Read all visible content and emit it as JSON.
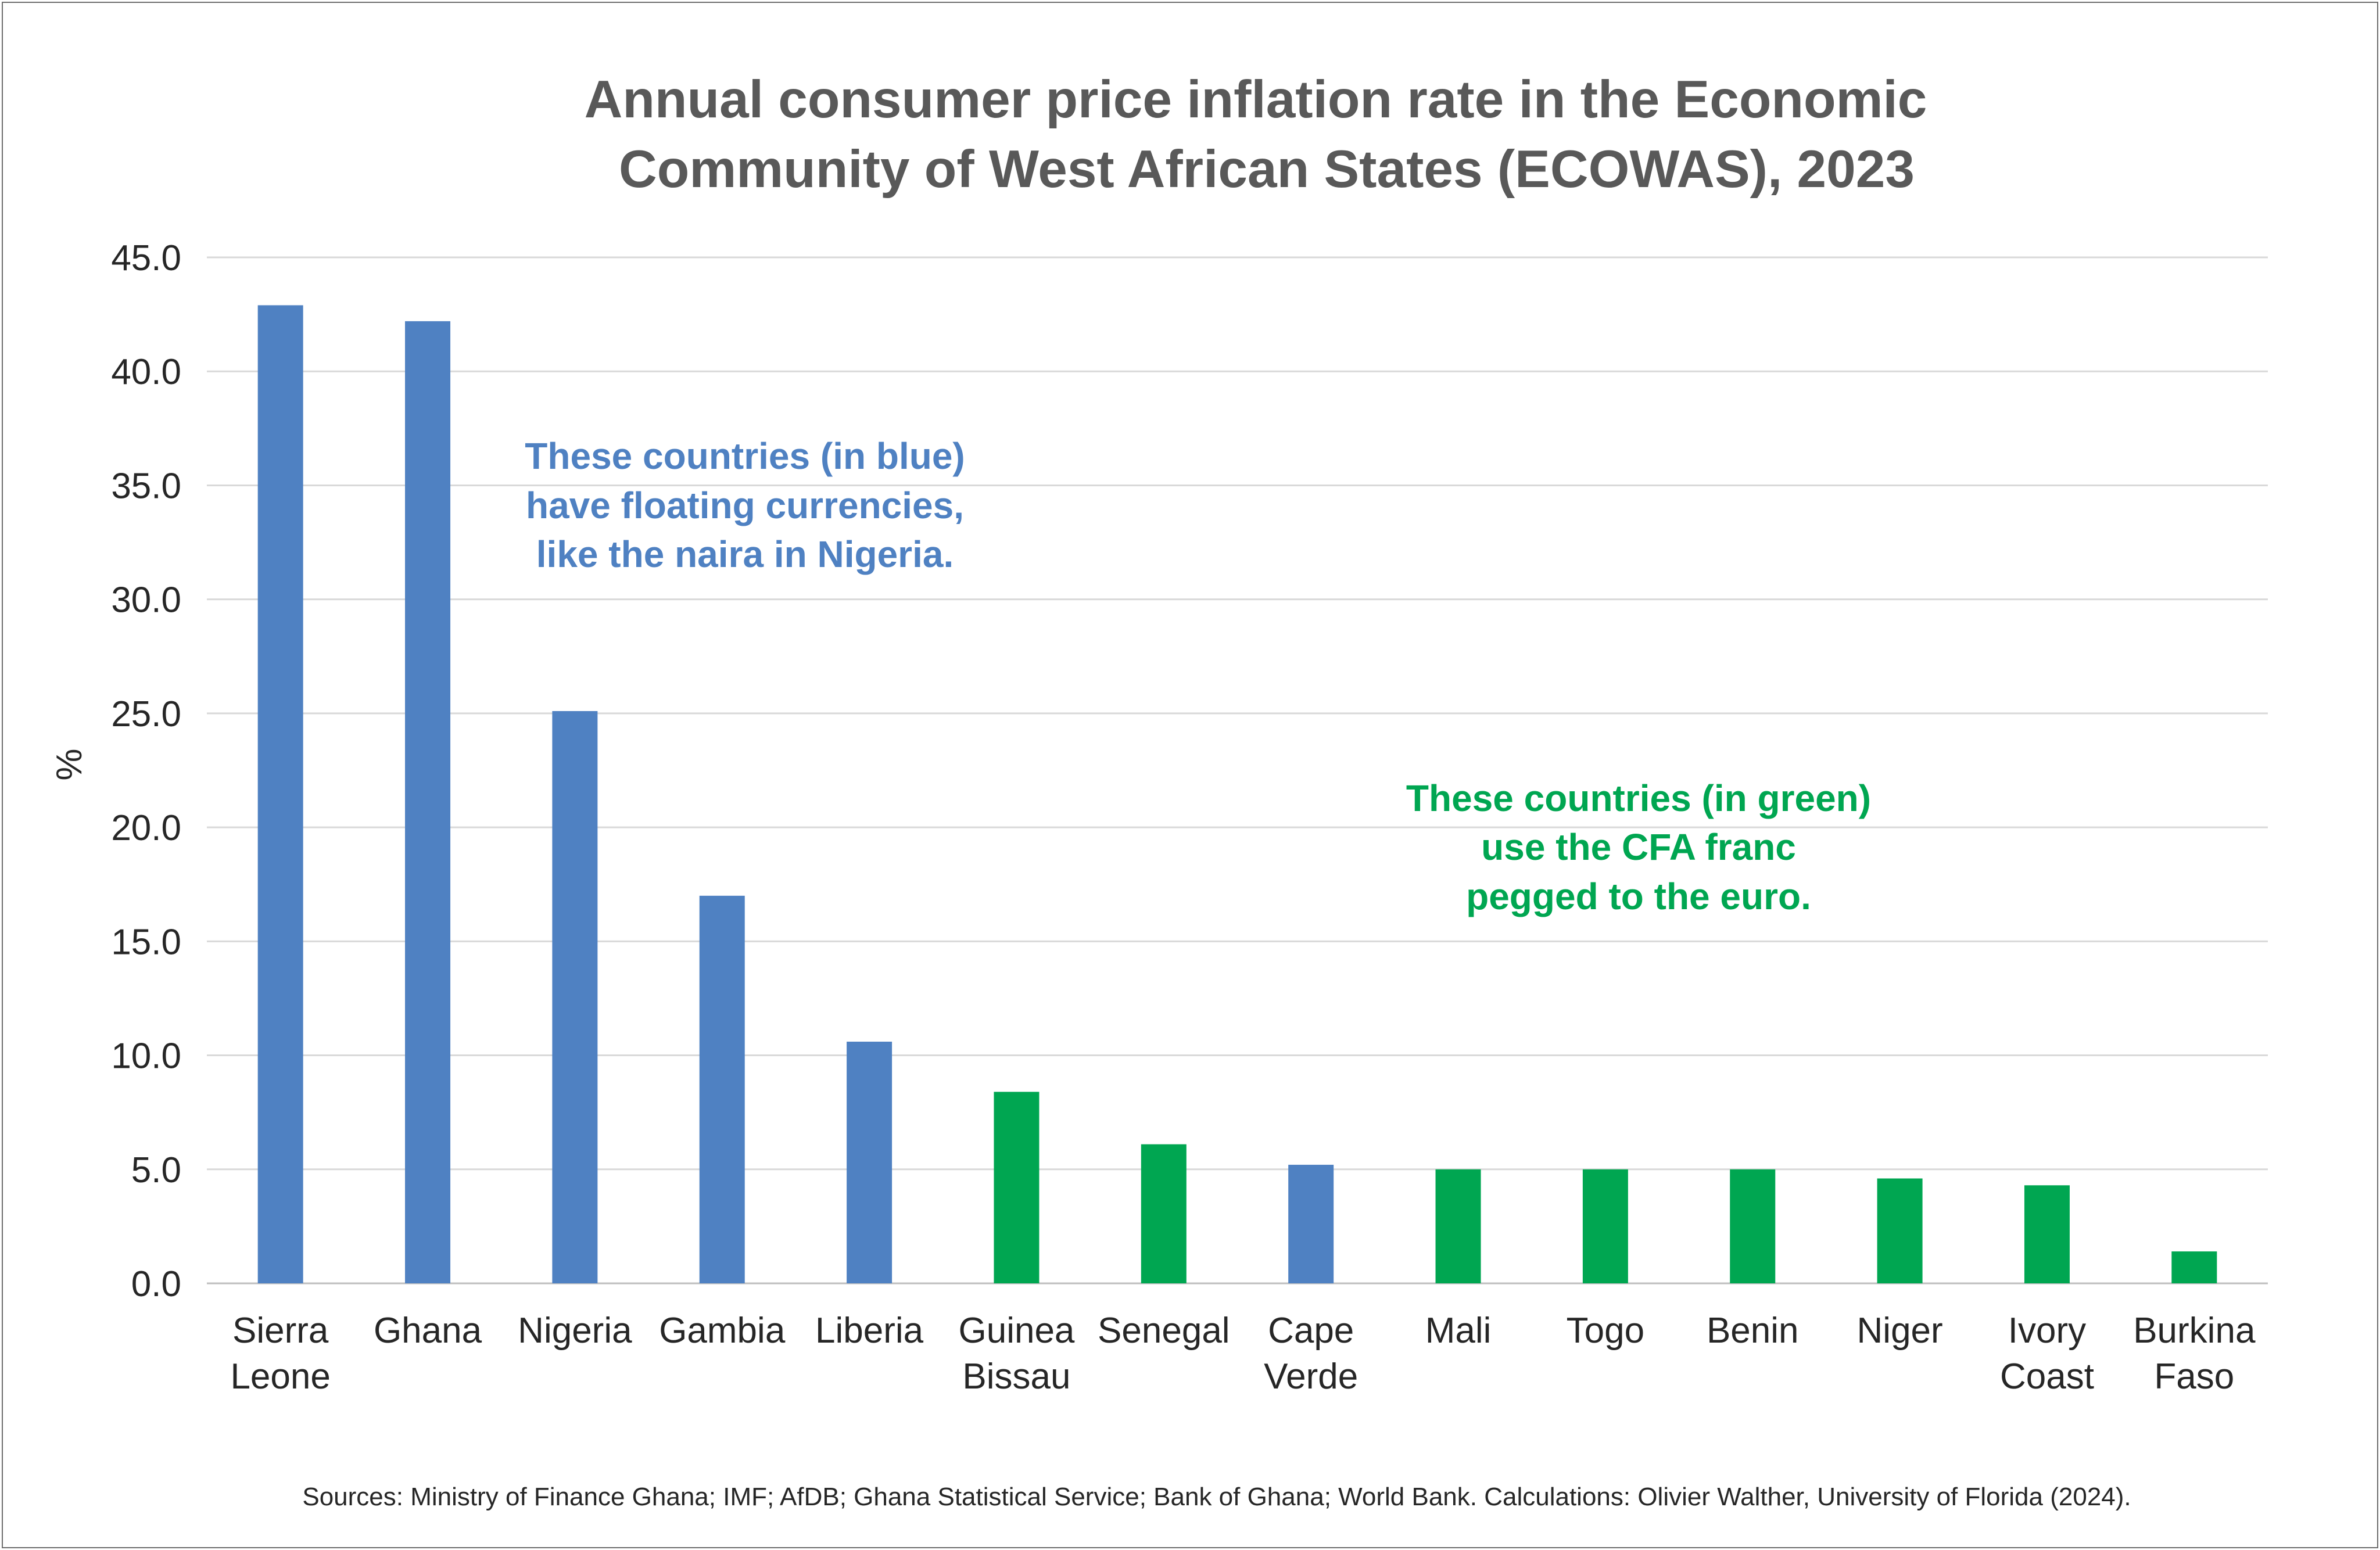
{
  "chart_data": {
    "type": "bar",
    "title": [
      "Annual consumer price inflation rate in the Economic",
      "Community of West African States (ECOWAS), 2023"
    ],
    "ylabel": "%",
    "xlabel": "",
    "ylim": [
      0,
      45
    ],
    "yticks": [
      "0.0",
      "5.0",
      "10.0",
      "15.0",
      "20.0",
      "25.0",
      "30.0",
      "35.0",
      "40.0",
      "45.0"
    ],
    "grid": true,
    "categories": [
      [
        "Sierra",
        "Leone"
      ],
      [
        "Ghana"
      ],
      [
        "Nigeria"
      ],
      [
        "Gambia"
      ],
      [
        "Liberia"
      ],
      [
        "Guinea",
        "Bissau"
      ],
      [
        "Senegal"
      ],
      [
        "Cape",
        "Verde"
      ],
      [
        "Mali"
      ],
      [
        "Togo"
      ],
      [
        "Benin"
      ],
      [
        "Niger"
      ],
      [
        "Ivory",
        "Coast"
      ],
      [
        "Burkina",
        "Faso"
      ]
    ],
    "values": [
      42.9,
      42.2,
      25.1,
      17.0,
      10.6,
      8.4,
      6.1,
      5.2,
      5.0,
      5.0,
      5.0,
      4.6,
      4.3,
      1.4
    ],
    "groups": [
      "floating",
      "floating",
      "floating",
      "floating",
      "floating",
      "cfa",
      "cfa",
      "floating",
      "cfa",
      "cfa",
      "cfa",
      "cfa",
      "cfa",
      "cfa"
    ],
    "colors": {
      "floating": "#4f81c2",
      "cfa": "#00a651"
    },
    "annotations": [
      {
        "group": "floating",
        "lines": [
          "These countries (in blue)",
          "have floating currencies,",
          "like the naira in Nigeria."
        ]
      },
      {
        "group": "cfa",
        "lines": [
          "These countries (in green)",
          "use the CFA franc",
          "pegged to the euro."
        ]
      }
    ],
    "source": "Sources: Ministry of Finance Ghana; IMF; AfDB; Ghana Statistical Service; Bank of Ghana; World Bank. Calculations: Olivier Walther, University of Florida (2024)."
  }
}
